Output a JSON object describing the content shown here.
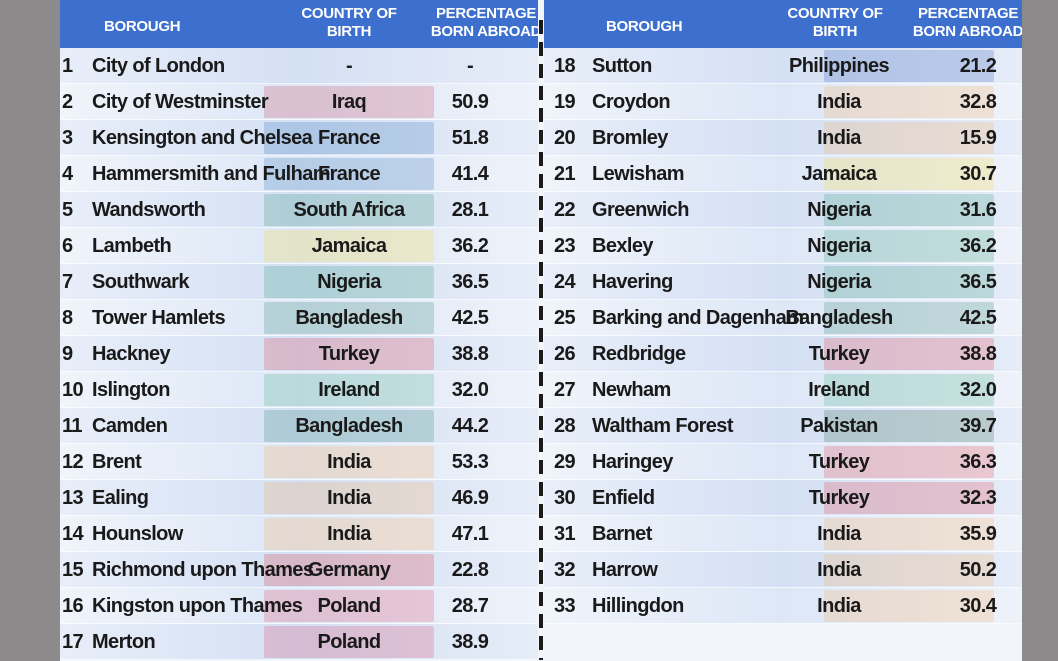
{
  "headers": {
    "borough": "BOROUGH",
    "country_line1": "COUNTRY OF",
    "country_line2": "BIRTH",
    "pct_line1": "PERCENTAGE",
    "pct_line2": "BORN ABROAD"
  },
  "left_rows": [
    {
      "num": "1",
      "name": "City of London",
      "country": "-",
      "pct": "-"
    },
    {
      "num": "2",
      "name": "City of Westminster",
      "country": "Iraq",
      "pct": "50.9"
    },
    {
      "num": "3",
      "name": "Kensington and Chelsea",
      "country": "France",
      "pct": "51.8"
    },
    {
      "num": "4",
      "name": "Hammersmith and Fulham",
      "country": "France",
      "pct": "41.4"
    },
    {
      "num": "5",
      "name": "Wandsworth",
      "country": "South Africa",
      "pct": "28.1"
    },
    {
      "num": "6",
      "name": "Lambeth",
      "country": "Jamaica",
      "pct": "36.2"
    },
    {
      "num": "7",
      "name": "Southwark",
      "country": "Nigeria",
      "pct": "36.5"
    },
    {
      "num": "8",
      "name": "Tower Hamlets",
      "country": "Bangladesh",
      "pct": "42.5"
    },
    {
      "num": "9",
      "name": "Hackney",
      "country": "Turkey",
      "pct": "38.8"
    },
    {
      "num": "10",
      "name": "Islington",
      "country": "Ireland",
      "pct": "32.0"
    },
    {
      "num": "11",
      "name": "Camden",
      "country": "Bangladesh",
      "pct": "44.2"
    },
    {
      "num": "12",
      "name": "Brent",
      "country": "India",
      "pct": "53.3"
    },
    {
      "num": "13",
      "name": "Ealing",
      "country": "India",
      "pct": "46.9"
    },
    {
      "num": "14",
      "name": "Hounslow",
      "country": "India",
      "pct": "47.1"
    },
    {
      "num": "15",
      "name": "Richmond upon Thames",
      "country": "Germany",
      "pct": "22.8"
    },
    {
      "num": "16",
      "name": "Kingston upon Thames",
      "country": "Poland",
      "pct": "28.7"
    },
    {
      "num": "17",
      "name": "Merton",
      "country": "Poland",
      "pct": "38.9"
    }
  ],
  "right_rows": [
    {
      "num": "18",
      "name": "Sutton",
      "country": "Philippines",
      "pct": "21.2"
    },
    {
      "num": "19",
      "name": "Croydon",
      "country": "India",
      "pct": "32.8"
    },
    {
      "num": "20",
      "name": "Bromley",
      "country": "India",
      "pct": "15.9"
    },
    {
      "num": "21",
      "name": "Lewisham",
      "country": "Jamaica",
      "pct": "30.7"
    },
    {
      "num": "22",
      "name": "Greenwich",
      "country": "Nigeria",
      "pct": "31.6"
    },
    {
      "num": "23",
      "name": "Bexley",
      "country": "Nigeria",
      "pct": "36.2"
    },
    {
      "num": "24",
      "name": "Havering",
      "country": "Nigeria",
      "pct": "36.5"
    },
    {
      "num": "25",
      "name": "Barking and Dagenham",
      "country": "Bangladesh",
      "pct": "42.5"
    },
    {
      "num": "26",
      "name": "Redbridge",
      "country": "Turkey",
      "pct": "38.8"
    },
    {
      "num": "27",
      "name": "Newham",
      "country": "Ireland",
      "pct": "32.0"
    },
    {
      "num": "28",
      "name": "Waltham Forest",
      "country": "Pakistan",
      "pct": "39.7"
    },
    {
      "num": "29",
      "name": "Haringey",
      "country": "Turkey",
      "pct": "36.3"
    },
    {
      "num": "30",
      "name": "Enfield",
      "country": "Turkey",
      "pct": "32.3"
    },
    {
      "num": "31",
      "name": "Barnet",
      "country": "India",
      "pct": "35.9"
    },
    {
      "num": "32",
      "name": "Harrow",
      "country": "India",
      "pct": "50.2"
    },
    {
      "num": "33",
      "name": "Hillingdon",
      "country": "India",
      "pct": "30.4"
    }
  ],
  "flag_colors": {
    "Iraq": "#c8102e",
    "France": "#0055a4",
    "South Africa": "#007a4d",
    "Jamaica": "#fed100",
    "Nigeria": "#008751",
    "Bangladesh": "#006a4e",
    "Turkey": "#e30a17",
    "Ireland": "#169b62",
    "India": "#ff9933",
    "Germany": "#dd0000",
    "Poland": "#dc143c",
    "Philippines": "#0038a8",
    "Pakistan": "#01411c"
  }
}
